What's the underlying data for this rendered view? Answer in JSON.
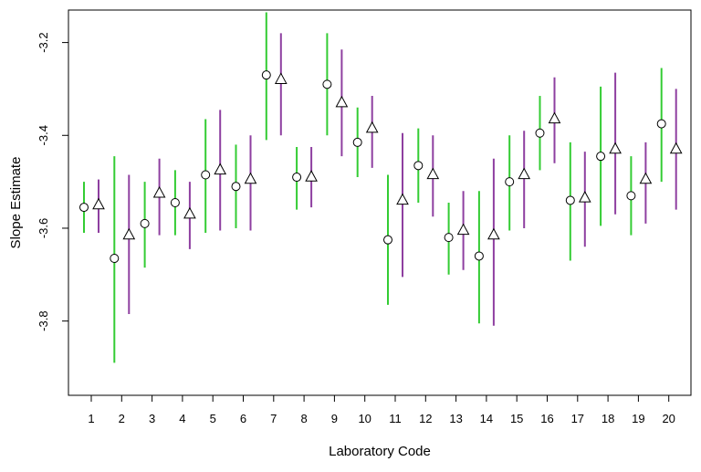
{
  "chart_data": {
    "type": "scatter",
    "title": "",
    "xlabel": "Laboratory Code",
    "ylabel": "Slope Estimate",
    "x_categories": [
      "1",
      "2",
      "3",
      "4",
      "5",
      "6",
      "7",
      "8",
      "9",
      "10",
      "11",
      "12",
      "13",
      "14",
      "15",
      "16",
      "17",
      "18",
      "19",
      "20"
    ],
    "y_ticks": [
      -3.2,
      -3.4,
      -3.6,
      -3.8
    ],
    "y_tick_labels": [
      "-3.2",
      "-3.4",
      "-3.6",
      "-3.8"
    ],
    "ylim": [
      -3.96,
      -3.13
    ],
    "grid": false,
    "series": [
      {
        "marker": "circle",
        "color": "#33cc33",
        "points": [
          {
            "lab": 1,
            "est": -3.555,
            "lo": -3.61,
            "hi": -3.5
          },
          {
            "lab": 2,
            "est": -3.665,
            "lo": -3.89,
            "hi": -3.445
          },
          {
            "lab": 3,
            "est": -3.59,
            "lo": -3.685,
            "hi": -3.5
          },
          {
            "lab": 4,
            "est": -3.545,
            "lo": -3.615,
            "hi": -3.475
          },
          {
            "lab": 5,
            "est": -3.485,
            "lo": -3.61,
            "hi": -3.365
          },
          {
            "lab": 6,
            "est": -3.51,
            "lo": -3.6,
            "hi": -3.42
          },
          {
            "lab": 7,
            "est": -3.27,
            "lo": -3.41,
            "hi": -3.135
          },
          {
            "lab": 8,
            "est": -3.49,
            "lo": -3.56,
            "hi": -3.425
          },
          {
            "lab": 9,
            "est": -3.29,
            "lo": -3.4,
            "hi": -3.18
          },
          {
            "lab": 10,
            "est": -3.415,
            "lo": -3.49,
            "hi": -3.34
          },
          {
            "lab": 11,
            "est": -3.625,
            "lo": -3.765,
            "hi": -3.485
          },
          {
            "lab": 12,
            "est": -3.465,
            "lo": -3.545,
            "hi": -3.385
          },
          {
            "lab": 13,
            "est": -3.62,
            "lo": -3.7,
            "hi": -3.545
          },
          {
            "lab": 14,
            "est": -3.66,
            "lo": -3.805,
            "hi": -3.52
          },
          {
            "lab": 15,
            "est": -3.5,
            "lo": -3.605,
            "hi": -3.4
          },
          {
            "lab": 16,
            "est": -3.395,
            "lo": -3.475,
            "hi": -3.315
          },
          {
            "lab": 17,
            "est": -3.54,
            "lo": -3.67,
            "hi": -3.415
          },
          {
            "lab": 18,
            "est": -3.445,
            "lo": -3.595,
            "hi": -3.295
          },
          {
            "lab": 19,
            "est": -3.53,
            "lo": -3.615,
            "hi": -3.445
          },
          {
            "lab": 20,
            "est": -3.375,
            "lo": -3.5,
            "hi": -3.255
          }
        ]
      },
      {
        "marker": "triangle",
        "color": "#8e3fa0",
        "points": [
          {
            "lab": 1,
            "est": -3.55,
            "lo": -3.61,
            "hi": -3.495
          },
          {
            "lab": 2,
            "est": -3.615,
            "lo": -3.785,
            "hi": -3.485
          },
          {
            "lab": 3,
            "est": -3.525,
            "lo": -3.615,
            "hi": -3.45
          },
          {
            "lab": 4,
            "est": -3.57,
            "lo": -3.645,
            "hi": -3.5
          },
          {
            "lab": 5,
            "est": -3.475,
            "lo": -3.605,
            "hi": -3.345
          },
          {
            "lab": 6,
            "est": -3.495,
            "lo": -3.605,
            "hi": -3.4
          },
          {
            "lab": 7,
            "est": -3.28,
            "lo": -3.4,
            "hi": -3.18
          },
          {
            "lab": 8,
            "est": -3.49,
            "lo": -3.555,
            "hi": -3.425
          },
          {
            "lab": 9,
            "est": -3.33,
            "lo": -3.445,
            "hi": -3.215
          },
          {
            "lab": 10,
            "est": -3.385,
            "lo": -3.47,
            "hi": -3.315
          },
          {
            "lab": 11,
            "est": -3.54,
            "lo": -3.705,
            "hi": -3.395
          },
          {
            "lab": 12,
            "est": -3.485,
            "lo": -3.575,
            "hi": -3.4
          },
          {
            "lab": 13,
            "est": -3.605,
            "lo": -3.69,
            "hi": -3.52
          },
          {
            "lab": 14,
            "est": -3.615,
            "lo": -3.81,
            "hi": -3.45
          },
          {
            "lab": 15,
            "est": -3.485,
            "lo": -3.6,
            "hi": -3.39
          },
          {
            "lab": 16,
            "est": -3.365,
            "lo": -3.46,
            "hi": -3.275
          },
          {
            "lab": 17,
            "est": -3.535,
            "lo": -3.64,
            "hi": -3.435
          },
          {
            "lab": 18,
            "est": -3.43,
            "lo": -3.57,
            "hi": -3.265
          },
          {
            "lab": 19,
            "est": -3.495,
            "lo": -3.59,
            "hi": -3.415
          },
          {
            "lab": 20,
            "est": -3.43,
            "lo": -3.56,
            "hi": -3.3
          }
        ]
      }
    ]
  }
}
